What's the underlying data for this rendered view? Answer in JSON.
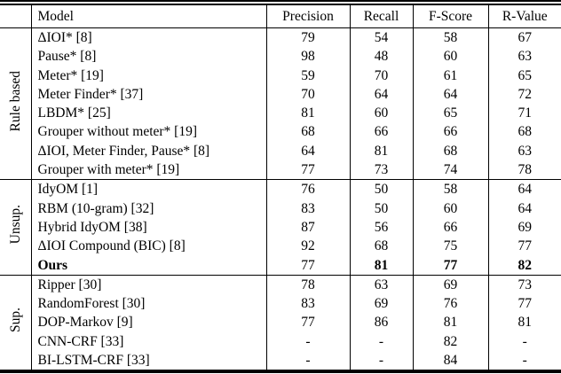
{
  "table": {
    "header": {
      "model": "Model",
      "precision": "Precision",
      "recall": "Recall",
      "fscore": "F-Score",
      "rvalue": "R-Value"
    },
    "groups": [
      {
        "label": "Rule based",
        "rows": [
          {
            "model": "ΔIOI* [8]",
            "precision": "79",
            "recall": "54",
            "fscore": "58",
            "rvalue": "67"
          },
          {
            "model": "Pause* [8]",
            "precision": "98",
            "recall": "48",
            "fscore": "60",
            "rvalue": "63"
          },
          {
            "model": "Meter* [19]",
            "precision": "59",
            "recall": "70",
            "fscore": "61",
            "rvalue": "65"
          },
          {
            "model": "Meter Finder* [37]",
            "precision": "70",
            "recall": "64",
            "fscore": "64",
            "rvalue": "72"
          },
          {
            "model": "LBDM* [25]",
            "precision": "81",
            "recall": "60",
            "fscore": "65",
            "rvalue": "71"
          },
          {
            "model": "Grouper without meter* [19]",
            "precision": "68",
            "recall": "66",
            "fscore": "66",
            "rvalue": "68"
          },
          {
            "model": "ΔIOI, Meter Finder, Pause* [8]",
            "precision": "64",
            "recall": "81",
            "fscore": "68",
            "rvalue": "63"
          },
          {
            "model": "Grouper with meter* [19]",
            "precision": "77",
            "recall": "73",
            "fscore": "74",
            "rvalue": "78"
          }
        ]
      },
      {
        "label": "Unsup.",
        "rows": [
          {
            "model": "IdyOM [1]",
            "precision": "76",
            "recall": "50",
            "fscore": "58",
            "rvalue": "64"
          },
          {
            "model": "RBM (10-gram) [32]",
            "precision": "83",
            "recall": "50",
            "fscore": "60",
            "rvalue": "64"
          },
          {
            "model": "Hybrid IdyOM [38]",
            "precision": "87",
            "recall": "56",
            "fscore": "66",
            "rvalue": "69"
          },
          {
            "model": "ΔIOI Compound (BIC) [8]",
            "precision": "92",
            "recall": "68",
            "fscore": "75",
            "rvalue": "77"
          },
          {
            "model": "Ours",
            "precision": "77",
            "recall": "81",
            "fscore": "77",
            "rvalue": "82",
            "bold_model": true,
            "bold_metrics": [
              "recall",
              "fscore",
              "rvalue"
            ]
          }
        ]
      },
      {
        "label": "Sup.",
        "rows": [
          {
            "model": "Ripper [30]",
            "precision": "78",
            "recall": "63",
            "fscore": "69",
            "rvalue": "73"
          },
          {
            "model": "RandomForest [30]",
            "precision": "83",
            "recall": "69",
            "fscore": "76",
            "rvalue": "77"
          },
          {
            "model": "DOP-Markov [9]",
            "precision": "77",
            "recall": "86",
            "fscore": "81",
            "rvalue": "81"
          },
          {
            "model": "CNN-CRF [33]",
            "precision": "-",
            "recall": "-",
            "fscore": "82",
            "rvalue": "-"
          },
          {
            "model": "BI-LSTM-CRF [33]",
            "precision": "-",
            "recall": "-",
            "fscore": "84",
            "rvalue": "-"
          }
        ]
      }
    ]
  }
}
